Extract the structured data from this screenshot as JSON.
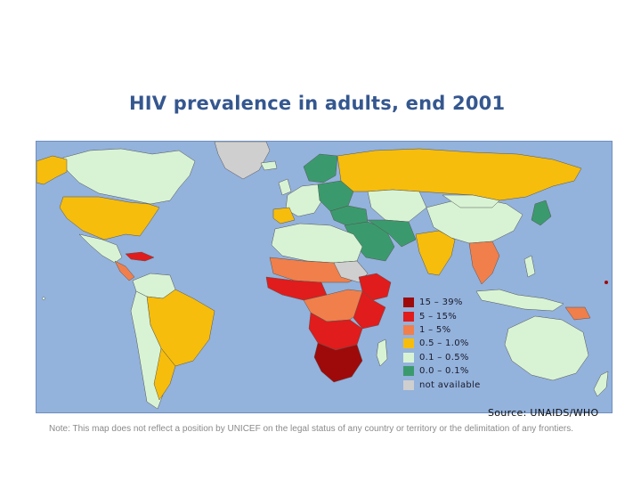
{
  "title": "HIV prevalence in adults, end 2001",
  "legend": [
    {
      "label": "15 – 39%",
      "color": "#9e0a0a"
    },
    {
      "label": "5 – 15%",
      "color": "#e01c1c"
    },
    {
      "label": "1 – 5%",
      "color": "#f07f4c"
    },
    {
      "label": "0.5 – 1.0%",
      "color": "#f6bd0c"
    },
    {
      "label": "0.1 – 0.5%",
      "color": "#d8f3d4"
    },
    {
      "label": "0.0 – 0.1%",
      "color": "#3b9a6d"
    },
    {
      "label": "not available",
      "color": "#cfcfcf"
    }
  ],
  "source": "Source: UNAIDS/WHO",
  "note": "Note: This map does not reflect a position by UNICEF on the legal status of any country or territory or the delimitation of any frontiers.",
  "colors": {
    "ocean": "#93b2dc",
    "title": "#35578f"
  }
}
